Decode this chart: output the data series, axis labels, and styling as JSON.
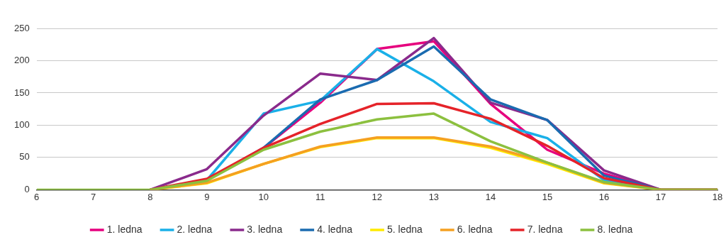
{
  "chart_data": {
    "type": "line",
    "x": [
      6,
      7,
      8,
      9,
      10,
      11,
      12,
      13,
      14,
      15,
      16,
      17,
      18
    ],
    "xlim": [
      6,
      18
    ],
    "xticks": [
      6,
      7,
      8,
      9,
      10,
      11,
      12,
      13,
      14,
      15,
      16,
      17,
      18
    ],
    "ylim": [
      0,
      250
    ],
    "yticks": [
      0,
      50,
      100,
      150,
      200,
      250
    ],
    "grid": "y",
    "legend": "bottom",
    "marker": "none",
    "line_style": "solid",
    "series": [
      {
        "name": "1. ledna",
        "color": "#e6007e",
        "values": [
          null,
          null,
          0,
          15,
          65,
          135,
          218,
          230,
          133,
          62,
          25,
          0,
          0
        ]
      },
      {
        "name": "2. ledna",
        "color": "#1ab0e8",
        "values": [
          null,
          null,
          0,
          15,
          118,
          138,
          218,
          168,
          105,
          80,
          15,
          0,
          0
        ]
      },
      {
        "name": "3. ledna",
        "color": "#8a2a8c",
        "values": [
          null,
          null,
          0,
          32,
          115,
          180,
          170,
          235,
          135,
          108,
          30,
          0,
          0
        ]
      },
      {
        "name": "4. ledna",
        "color": "#1a6bb0",
        "values": [
          null,
          null,
          0,
          15,
          65,
          140,
          170,
          222,
          140,
          108,
          22,
          0,
          0
        ]
      },
      {
        "name": "5. ledna",
        "color": "#ffea00",
        "values": [
          null,
          null,
          0,
          10,
          40,
          66,
          80,
          80,
          65,
          40,
          10,
          0,
          0
        ]
      },
      {
        "name": "6. ledna",
        "color": "#f5a021",
        "values": [
          null,
          null,
          0,
          11,
          40,
          67,
          81,
          81,
          67,
          42,
          11,
          0,
          0
        ]
      },
      {
        "name": "7. ledna",
        "color": "#e52329",
        "values": [
          null,
          null,
          0,
          17,
          65,
          102,
          133,
          134,
          110,
          68,
          18,
          0,
          0
        ]
      },
      {
        "name": "8. ledna",
        "color": "#8cc03f",
        "values": [
          0,
          0,
          0,
          14,
          62,
          90,
          109,
          118,
          75,
          42,
          12,
          0,
          0
        ]
      }
    ]
  }
}
